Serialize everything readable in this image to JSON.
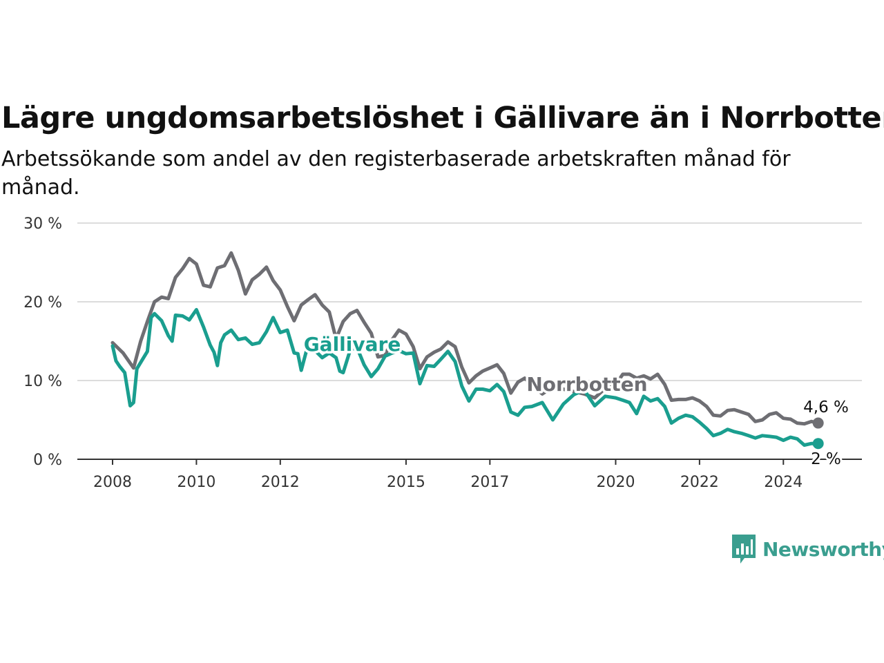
{
  "title": "Lägre ungdomsarbetslöshet i Gällivare än i Norrbotten",
  "subtitle": "Arbetssökande som andel av den registerbaserade arbetskraften månad för månad.",
  "logo": {
    "text": "Newsworthy",
    "icon": "chart-bars-icon",
    "color": "#3a9e8f"
  },
  "chart_data": {
    "type": "line",
    "title": "Lägre ungdomsarbetslöshet i Gällivare än i Norrbotten",
    "ylim": [
      0,
      30
    ],
    "y_ticks": [
      {
        "value": 0,
        "label": "0 %"
      },
      {
        "value": 10,
        "label": "10 %"
      },
      {
        "value": 20,
        "label": "20 %"
      },
      {
        "value": 30,
        "label": "30 %"
      }
    ],
    "x_range": [
      2008.0,
      2025.0
    ],
    "x_ticks": [
      {
        "value": 2008,
        "label": "2008"
      },
      {
        "value": 2010,
        "label": "2010"
      },
      {
        "value": 2012,
        "label": "2012"
      },
      {
        "value": 2015,
        "label": "2015"
      },
      {
        "value": 2017,
        "label": "2017"
      },
      {
        "value": 2020,
        "label": "2020"
      },
      {
        "value": 2022,
        "label": "2022"
      },
      {
        "value": 2024,
        "label": "2024"
      }
    ],
    "grid": true,
    "series": [
      {
        "name": "Norrbotten",
        "color": "#6e6e73",
        "end_label": "4,6 %",
        "x": [
          2008.0,
          2008.25,
          2008.5,
          2008.67,
          2008.83,
          2009.0,
          2009.17,
          2009.33,
          2009.5,
          2009.67,
          2009.83,
          2010.0,
          2010.17,
          2010.33,
          2010.5,
          2010.67,
          2010.83,
          2011.0,
          2011.17,
          2011.33,
          2011.5,
          2011.67,
          2011.83,
          2012.0,
          2012.17,
          2012.33,
          2012.5,
          2012.67,
          2012.83,
          2013.0,
          2013.17,
          2013.33,
          2013.5,
          2013.67,
          2013.83,
          2014.0,
          2014.17,
          2014.33,
          2014.5,
          2014.67,
          2014.83,
          2015.0,
          2015.17,
          2015.33,
          2015.5,
          2015.67,
          2015.83,
          2016.0,
          2016.17,
          2016.33,
          2016.5,
          2016.67,
          2016.83,
          2017.0,
          2017.17,
          2017.33,
          2017.5,
          2017.67,
          2017.83,
          2018.0,
          2018.25,
          2018.5,
          2018.75,
          2019.0,
          2019.25,
          2019.5,
          2019.75,
          2020.0,
          2020.17,
          2020.33,
          2020.5,
          2020.67,
          2020.83,
          2021.0,
          2021.17,
          2021.33,
          2021.5,
          2021.67,
          2021.83,
          2022.0,
          2022.17,
          2022.33,
          2022.5,
          2022.67,
          2022.83,
          2023.0,
          2023.17,
          2023.33,
          2023.5,
          2023.67,
          2023.83,
          2024.0,
          2024.17,
          2024.33,
          2024.5,
          2024.67,
          2024.83
        ],
        "y": [
          14.8,
          13.5,
          11.6,
          15.0,
          17.5,
          20.0,
          20.6,
          20.4,
          23.1,
          24.2,
          25.5,
          24.8,
          22.1,
          21.9,
          24.3,
          24.6,
          26.2,
          24.0,
          21.0,
          22.8,
          23.5,
          24.4,
          22.7,
          21.5,
          19.4,
          17.6,
          19.6,
          20.3,
          20.9,
          19.6,
          18.7,
          15.3,
          17.5,
          18.5,
          18.9,
          17.4,
          16.0,
          13.0,
          13.2,
          15.2,
          16.4,
          15.9,
          14.3,
          11.5,
          13.0,
          13.6,
          14.0,
          14.9,
          14.3,
          11.7,
          9.7,
          10.6,
          11.2,
          11.6,
          12.0,
          10.9,
          8.4,
          9.8,
          10.3,
          9.5,
          8.3,
          9.2,
          8.9,
          8.6,
          8.3,
          7.8,
          9.0,
          9.5,
          10.8,
          10.8,
          10.3,
          10.6,
          10.2,
          10.8,
          9.5,
          7.5,
          7.6,
          7.6,
          7.8,
          7.4,
          6.7,
          5.6,
          5.5,
          6.2,
          6.3,
          6.0,
          5.7,
          4.8,
          5.0,
          5.7,
          5.9,
          5.2,
          5.1,
          4.6,
          4.5,
          4.8,
          4.6
        ]
      },
      {
        "name": "Gällivare",
        "color": "#1a9e8f",
        "end_label": "2 %",
        "x": [
          2008.0,
          2008.08,
          2008.17,
          2008.29,
          2008.42,
          2008.5,
          2008.58,
          2008.67,
          2008.83,
          2008.92,
          2009.0,
          2009.17,
          2009.33,
          2009.42,
          2009.5,
          2009.67,
          2009.83,
          2010.0,
          2010.17,
          2010.33,
          2010.42,
          2010.5,
          2010.58,
          2010.67,
          2010.83,
          2011.0,
          2011.17,
          2011.33,
          2011.5,
          2011.67,
          2011.83,
          2012.0,
          2012.17,
          2012.33,
          2012.42,
          2012.5,
          2012.67,
          2012.83,
          2013.0,
          2013.17,
          2013.33,
          2013.42,
          2013.5,
          2013.67,
          2013.83,
          2014.0,
          2014.17,
          2014.33,
          2014.5,
          2014.67,
          2014.83,
          2015.0,
          2015.17,
          2015.33,
          2015.5,
          2015.67,
          2015.83,
          2016.0,
          2016.17,
          2016.33,
          2016.5,
          2016.67,
          2016.83,
          2017.0,
          2017.17,
          2017.33,
          2017.5,
          2017.67,
          2017.83,
          2018.0,
          2018.25,
          2018.5,
          2018.75,
          2019.0,
          2019.25,
          2019.5,
          2019.75,
          2020.0,
          2020.17,
          2020.33,
          2020.5,
          2020.67,
          2020.83,
          2021.0,
          2021.17,
          2021.33,
          2021.5,
          2021.67,
          2021.83,
          2022.0,
          2022.17,
          2022.33,
          2022.5,
          2022.67,
          2022.83,
          2023.0,
          2023.17,
          2023.33,
          2023.5,
          2023.67,
          2023.83,
          2024.0,
          2024.17,
          2024.33,
          2024.5,
          2024.67,
          2024.83
        ],
        "y": [
          14.4,
          12.5,
          11.8,
          11.0,
          6.8,
          7.2,
          11.5,
          12.3,
          13.7,
          18.0,
          18.5,
          17.6,
          15.7,
          15.0,
          18.3,
          18.2,
          17.7,
          19.0,
          16.8,
          14.5,
          13.6,
          11.9,
          14.8,
          15.8,
          16.4,
          15.2,
          15.4,
          14.6,
          14.8,
          16.2,
          18.0,
          16.1,
          16.4,
          13.5,
          13.4,
          11.3,
          14.7,
          13.8,
          12.9,
          13.5,
          12.9,
          11.2,
          11.0,
          13.9,
          14.2,
          12.0,
          10.5,
          11.5,
          13.1,
          13.5,
          13.8,
          13.4,
          13.5,
          9.6,
          11.9,
          11.8,
          12.7,
          13.7,
          12.4,
          9.3,
          7.4,
          8.9,
          8.9,
          8.7,
          9.5,
          8.6,
          6.0,
          5.6,
          6.6,
          6.7,
          7.2,
          5.0,
          7.0,
          8.2,
          8.8,
          6.8,
          8.0,
          7.8,
          7.5,
          7.2,
          5.8,
          8.0,
          7.4,
          7.7,
          6.7,
          4.6,
          5.2,
          5.6,
          5.4,
          4.7,
          3.9,
          3.0,
          3.3,
          3.8,
          3.5,
          3.3,
          3.0,
          2.7,
          3.0,
          2.9,
          2.8,
          2.4,
          2.8,
          2.6,
          1.8,
          2.0,
          2.0
        ]
      }
    ]
  }
}
